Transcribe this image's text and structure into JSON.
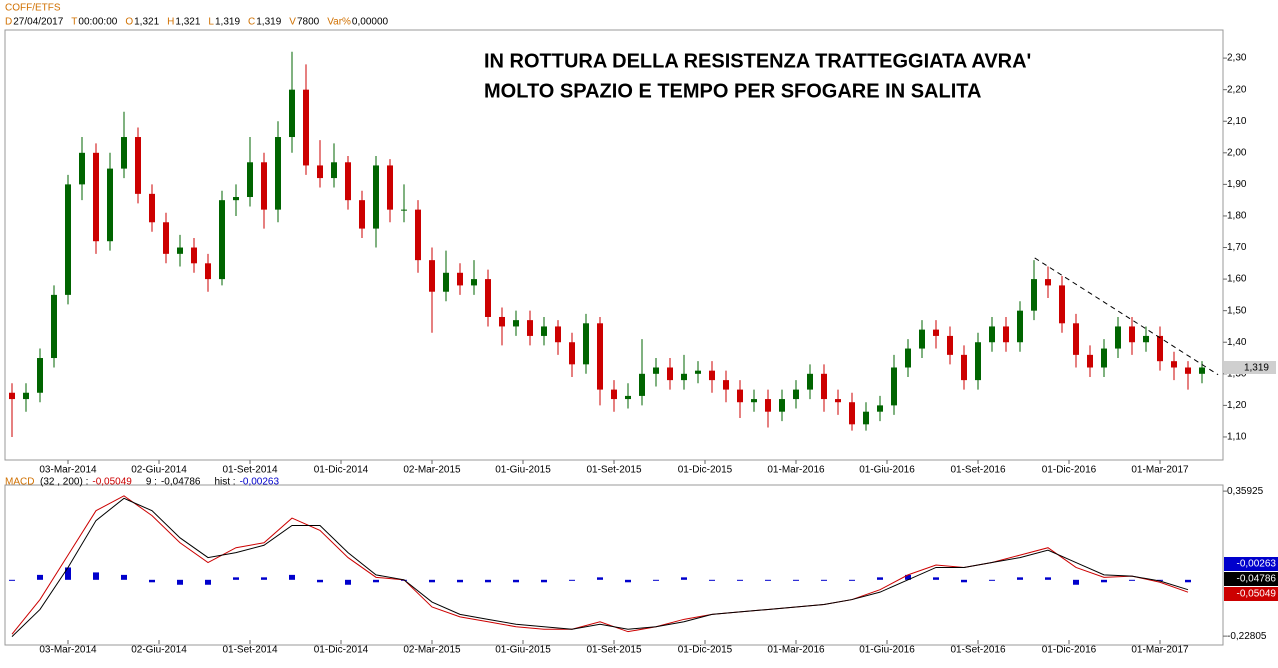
{
  "header": {
    "symbol": "COFF/ETFS",
    "fields": [
      {
        "key": "D",
        "value": "27/04/2017"
      },
      {
        "key": "T",
        "value": "00:00:00"
      },
      {
        "key": "O",
        "value": "1,321"
      },
      {
        "key": "H",
        "value": "1,321"
      },
      {
        "key": "L",
        "value": "1,319"
      },
      {
        "key": "C",
        "value": "1,319"
      },
      {
        "key": "V",
        "value": "7800"
      },
      {
        "key": "Var%",
        "value": "0,00000"
      }
    ]
  },
  "annotation": [
    "IN ROTTURA DELLA RESISTENZA TRATTEGGIATA AVRA'",
    "MOLTO SPAZIO E TEMPO PER SFOGARE IN SALITA"
  ],
  "chart_data": [
    {
      "type": "candlestick",
      "up_color": "#006400",
      "down_color": "#cc0000",
      "x": [
        0,
        2,
        4,
        6,
        8,
        10,
        12,
        14,
        16,
        18,
        20,
        22,
        24,
        26,
        28,
        30,
        32,
        34,
        36,
        38,
        40,
        42,
        44,
        46,
        48,
        50,
        52,
        54,
        56,
        58,
        60,
        62,
        64,
        66,
        68,
        70,
        72,
        74,
        76,
        78,
        80,
        82,
        84,
        86,
        88,
        90,
        92,
        94,
        96,
        98,
        100,
        102,
        104,
        106,
        108,
        110,
        112,
        114,
        116,
        118,
        120,
        122,
        124,
        126,
        128,
        130,
        132,
        134,
        136,
        138,
        140,
        142,
        144,
        146,
        148,
        150,
        152,
        154,
        156,
        158,
        160,
        162,
        164,
        166,
        168,
        170
      ],
      "open": [
        1.24,
        1.22,
        1.24,
        1.35,
        1.55,
        1.9,
        2.0,
        1.72,
        1.95,
        2.05,
        1.87,
        1.78,
        1.68,
        1.7,
        1.65,
        1.6,
        1.85,
        1.86,
        1.97,
        1.82,
        2.05,
        2.2,
        1.96,
        1.92,
        1.97,
        1.85,
        1.76,
        1.96,
        1.82,
        1.82,
        1.66,
        1.56,
        1.62,
        1.58,
        1.6,
        1.48,
        1.45,
        1.47,
        1.42,
        1.45,
        1.4,
        1.33,
        1.46,
        1.25,
        1.22,
        1.23,
        1.3,
        1.32,
        1.28,
        1.3,
        1.31,
        1.28,
        1.25,
        1.21,
        1.22,
        1.18,
        1.22,
        1.25,
        1.3,
        1.22,
        1.21,
        1.14,
        1.18,
        1.2,
        1.32,
        1.38,
        1.44,
        1.42,
        1.36,
        1.28,
        1.4,
        1.45,
        1.4,
        1.5,
        1.6,
        1.58,
        1.46,
        1.36,
        1.32,
        1.38,
        1.45,
        1.4,
        1.42,
        1.34,
        1.32,
        1.3
      ],
      "high": [
        1.27,
        1.27,
        1.38,
        1.58,
        1.93,
        2.05,
        2.03,
        2.0,
        2.13,
        2.08,
        1.9,
        1.81,
        1.74,
        1.73,
        1.68,
        1.88,
        1.9,
        2.05,
        2.0,
        2.1,
        2.32,
        2.28,
        2.04,
        2.03,
        1.99,
        1.88,
        1.99,
        1.98,
        1.9,
        1.85,
        1.7,
        1.69,
        1.65,
        1.66,
        1.63,
        1.51,
        1.5,
        1.5,
        1.48,
        1.47,
        1.43,
        1.49,
        1.48,
        1.28,
        1.27,
        1.41,
        1.35,
        1.35,
        1.36,
        1.34,
        1.34,
        1.31,
        1.28,
        1.25,
        1.25,
        1.25,
        1.28,
        1.33,
        1.33,
        1.25,
        1.24,
        1.21,
        1.23,
        1.36,
        1.41,
        1.47,
        1.47,
        1.45,
        1.39,
        1.43,
        1.48,
        1.48,
        1.53,
        1.66,
        1.64,
        1.61,
        1.49,
        1.39,
        1.41,
        1.48,
        1.48,
        1.45,
        1.45,
        1.37,
        1.34,
        1.34
      ],
      "low": [
        1.1,
        1.18,
        1.21,
        1.32,
        1.52,
        1.85,
        1.68,
        1.69,
        1.92,
        1.84,
        1.75,
        1.65,
        1.64,
        1.62,
        1.56,
        1.58,
        1.8,
        1.83,
        1.76,
        1.78,
        2.0,
        1.93,
        1.89,
        1.89,
        1.82,
        1.73,
        1.7,
        1.78,
        1.78,
        1.62,
        1.43,
        1.53,
        1.55,
        1.55,
        1.45,
        1.39,
        1.42,
        1.39,
        1.39,
        1.36,
        1.29,
        1.3,
        1.2,
        1.18,
        1.19,
        1.2,
        1.26,
        1.25,
        1.25,
        1.27,
        1.24,
        1.21,
        1.16,
        1.18,
        1.13,
        1.15,
        1.19,
        1.22,
        1.18,
        1.17,
        1.12,
        1.12,
        1.15,
        1.17,
        1.29,
        1.35,
        1.38,
        1.33,
        1.25,
        1.25,
        1.37,
        1.37,
        1.37,
        1.47,
        1.54,
        1.43,
        1.32,
        1.29,
        1.29,
        1.35,
        1.36,
        1.37,
        1.31,
        1.28,
        1.25,
        1.27
      ],
      "close": [
        1.22,
        1.24,
        1.35,
        1.55,
        1.9,
        2.0,
        1.72,
        1.95,
        2.05,
        1.87,
        1.78,
        1.68,
        1.7,
        1.65,
        1.6,
        1.85,
        1.86,
        1.97,
        1.82,
        2.05,
        2.2,
        1.96,
        1.92,
        1.97,
        1.85,
        1.76,
        1.96,
        1.82,
        1.82,
        1.66,
        1.56,
        1.62,
        1.58,
        1.6,
        1.48,
        1.45,
        1.47,
        1.42,
        1.45,
        1.4,
        1.33,
        1.46,
        1.25,
        1.22,
        1.23,
        1.3,
        1.32,
        1.28,
        1.3,
        1.31,
        1.28,
        1.25,
        1.21,
        1.22,
        1.18,
        1.22,
        1.25,
        1.3,
        1.22,
        1.21,
        1.14,
        1.18,
        1.2,
        1.32,
        1.38,
        1.44,
        1.42,
        1.36,
        1.28,
        1.4,
        1.45,
        1.4,
        1.5,
        1.6,
        1.58,
        1.46,
        1.36,
        1.32,
        1.38,
        1.45,
        1.4,
        1.42,
        1.34,
        1.32,
        1.3,
        1.32
      ],
      "xlim": [
        -1,
        173
      ],
      "ylim": [
        1.027,
        2.389
      ],
      "yticks": [
        {
          "value": 1.1,
          "label": "1,10"
        },
        {
          "value": 1.2,
          "label": "1,20"
        },
        {
          "value": 1.3,
          "label": "1,30"
        },
        {
          "value": 1.4,
          "label": "1,40"
        },
        {
          "value": 1.5,
          "label": "1,50"
        },
        {
          "value": 1.6,
          "label": "1,60"
        },
        {
          "value": 1.7,
          "label": "1,70"
        },
        {
          "value": 1.8,
          "label": "1,80"
        },
        {
          "value": 1.9,
          "label": "1,90"
        },
        {
          "value": 2.0,
          "label": "2,00"
        },
        {
          "value": 2.1,
          "label": "2,10"
        },
        {
          "value": 2.2,
          "label": "2,20"
        },
        {
          "value": 2.3,
          "label": "2,30"
        }
      ],
      "xticks": [
        {
          "value": 8,
          "label": "03-Mar-2014"
        },
        {
          "value": 21,
          "label": "02-Giu-2014"
        },
        {
          "value": 34,
          "label": "01-Set-2014"
        },
        {
          "value": 47,
          "label": "01-Dic-2014"
        },
        {
          "value": 60,
          "label": "02-Mar-2015"
        },
        {
          "value": 73,
          "label": "01-Giu-2015"
        },
        {
          "value": 86,
          "label": "01-Set-2015"
        },
        {
          "value": 99,
          "label": "01-Dic-2015"
        },
        {
          "value": 112,
          "label": "01-Mar-2016"
        },
        {
          "value": 125,
          "label": "01-Giu-2016"
        },
        {
          "value": 138,
          "label": "01-Set-2016"
        },
        {
          "value": 151,
          "label": "01-Dic-2016"
        },
        {
          "value": 164,
          "label": "01-Mar-2017"
        }
      ],
      "trendline": {
        "x": [
          146.1,
          172.3
        ],
        "y": [
          1.667,
          1.297
        ]
      },
      "last_price_label": "1,319"
    },
    {
      "type": "macd",
      "title": "MACD",
      "x": [
        0,
        4,
        8,
        12,
        16,
        20,
        24,
        28,
        32,
        36,
        40,
        44,
        48,
        52,
        56,
        60,
        64,
        68,
        72,
        76,
        80,
        84,
        88,
        92,
        96,
        100,
        104,
        108,
        112,
        116,
        120,
        124,
        128,
        132,
        136,
        140,
        144,
        148,
        152,
        156,
        160,
        164,
        168
      ],
      "series": [
        {
          "name": "(32 , 200) :",
          "color": "#cc0000",
          "value_label": "-0,05049",
          "values": [
            -0.22,
            -0.08,
            0.1,
            0.28,
            0.34,
            0.26,
            0.15,
            0.07,
            0.13,
            0.15,
            0.25,
            0.2,
            0.09,
            0.01,
            0.0,
            -0.11,
            -0.15,
            -0.17,
            -0.19,
            -0.2,
            -0.2,
            -0.17,
            -0.21,
            -0.19,
            -0.16,
            -0.14,
            -0.13,
            -0.12,
            -0.11,
            -0.1,
            -0.08,
            -0.04,
            0.02,
            0.06,
            0.05,
            0.07,
            0.1,
            0.13,
            0.05,
            0.01,
            0.015,
            -0.01,
            -0.05
          ]
        },
        {
          "name": "9 :",
          "color": "#000000",
          "value_label": "-0,04786",
          "values": [
            -0.23,
            -0.12,
            0.05,
            0.24,
            0.33,
            0.28,
            0.17,
            0.09,
            0.11,
            0.14,
            0.22,
            0.22,
            0.11,
            0.02,
            0.0,
            -0.09,
            -0.14,
            -0.16,
            -0.18,
            -0.19,
            -0.2,
            -0.18,
            -0.2,
            -0.19,
            -0.17,
            -0.14,
            -0.13,
            -0.12,
            -0.11,
            -0.1,
            -0.08,
            -0.05,
            0.0,
            0.05,
            0.05,
            0.07,
            0.09,
            0.12,
            0.07,
            0.02,
            0.015,
            -0.005,
            -0.04
          ]
        }
      ],
      "hist": {
        "name": "hist :",
        "color": "#0000cc",
        "value_label": "-0,00263",
        "values": [
          0.0,
          0.02,
          0.05,
          0.03,
          0.02,
          -0.01,
          -0.02,
          -0.02,
          0.01,
          0.01,
          0.02,
          -0.01,
          -0.02,
          -0.01,
          0.0,
          -0.01,
          -0.01,
          -0.01,
          -0.01,
          -0.01,
          0.0,
          0.01,
          -0.01,
          0.0,
          0.01,
          0.0,
          0.0,
          0.0,
          0.0,
          0.0,
          0.0,
          0.01,
          0.02,
          0.01,
          -0.01,
          0.0,
          0.01,
          0.01,
          -0.02,
          -0.01,
          0.0,
          0.0,
          -0.01
        ]
      },
      "xlim": [
        -1,
        173
      ],
      "ylim": [
        -0.264,
        0.384
      ],
      "yticks": [
        {
          "value": 0.35925,
          "label": "0,35925"
        },
        {
          "value": -0.22805,
          "label": "-0,22805"
        }
      ]
    }
  ]
}
